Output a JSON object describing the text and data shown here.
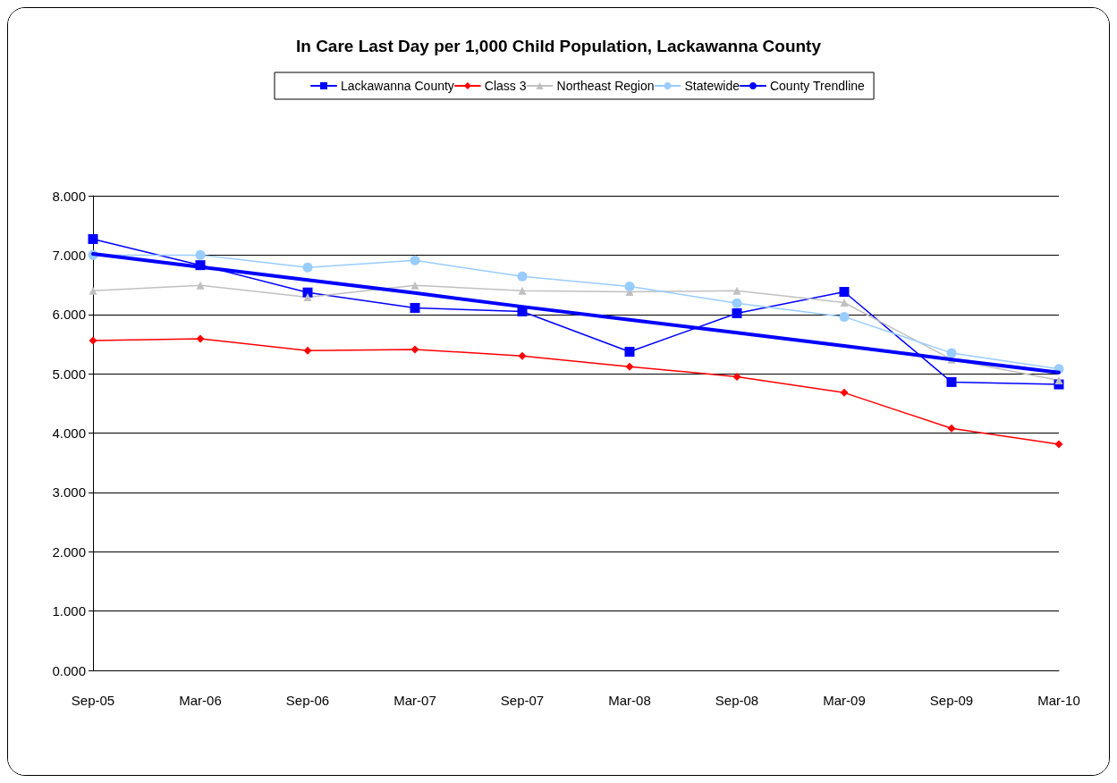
{
  "chart_data": {
    "type": "line",
    "title": "In Care Last Day per 1,000 Child Population, Lackawanna County",
    "categories": [
      "Sep-05",
      "Mar-06",
      "Sep-06",
      "Mar-07",
      "Sep-07",
      "Mar-08",
      "Sep-08",
      "Mar-09",
      "Sep-09",
      "Mar-10"
    ],
    "series": [
      {
        "name": "Lackawanna County",
        "color": "#0000ff",
        "marker": "square",
        "values": [
          7.27,
          6.83,
          6.37,
          6.11,
          6.05,
          5.37,
          6.02,
          6.38,
          4.86,
          4.82
        ]
      },
      {
        "name": "Class 3",
        "color": "#ff0000",
        "marker": "diamond",
        "values": [
          5.56,
          5.59,
          5.39,
          5.41,
          5.3,
          5.12,
          4.95,
          4.68,
          4.08,
          3.81
        ]
      },
      {
        "name": "Northeast Region",
        "color": "#c0c0c0",
        "marker": "triangle",
        "values": [
          6.4,
          6.49,
          6.29,
          6.49,
          6.4,
          6.38,
          6.4,
          6.2,
          5.24,
          4.89
        ]
      },
      {
        "name": "Statewide",
        "color": "#99ccff",
        "marker": "circle",
        "values": [
          7.0,
          7.0,
          6.79,
          6.91,
          6.64,
          6.47,
          6.19,
          5.96,
          5.35,
          5.08
        ]
      },
      {
        "name": "County Trendline",
        "color": "#0000ff",
        "marker": "none",
        "values": [
          7.02,
          6.8,
          6.58,
          6.36,
          6.13,
          5.91,
          5.69,
          5.47,
          5.24,
          5.02
        ]
      }
    ],
    "ylim": [
      0,
      8
    ],
    "yticks": [
      {
        "value": 0,
        "label": "0.000"
      },
      {
        "value": 1,
        "label": "1.000"
      },
      {
        "value": 2,
        "label": "2.000"
      },
      {
        "value": 3,
        "label": "3.000"
      },
      {
        "value": 4,
        "label": "4.000"
      },
      {
        "value": 5,
        "label": "5.000"
      },
      {
        "value": 6,
        "label": "6.000"
      },
      {
        "value": 7,
        "label": "7.000"
      },
      {
        "value": 8,
        "label": "8.000"
      }
    ],
    "grid": "y",
    "legend": "top"
  }
}
